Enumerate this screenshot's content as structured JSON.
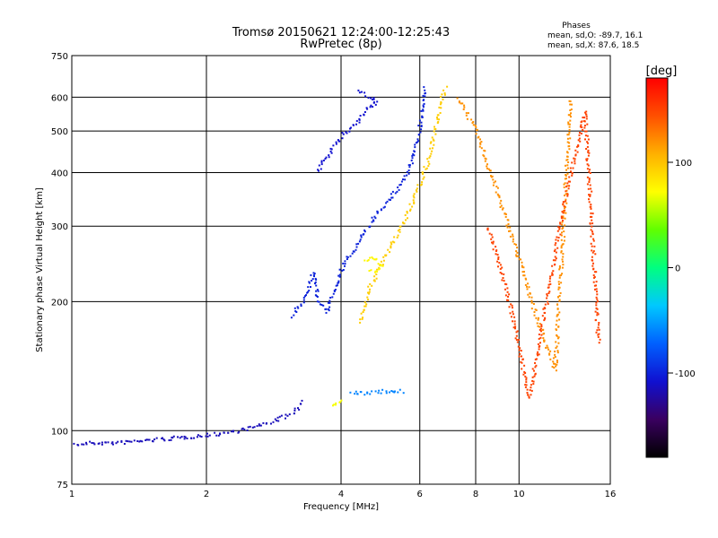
{
  "chart_data": {
    "type": "scatter",
    "title": "Tromsø 20150621 12:24:00-12:25:43",
    "subtitle": "RwPretec (8p)",
    "xlabel": "Frequency [MHz]",
    "ylabel": "Stationary phase Virtual Height [km]",
    "x_scale": "log",
    "y_scale": "log",
    "xlim": [
      1,
      16
    ],
    "ylim": [
      75,
      750
    ],
    "x_ticks": [
      1,
      2,
      4,
      6,
      8,
      10,
      16
    ],
    "y_ticks": [
      75,
      100,
      200,
      300,
      400,
      500,
      600,
      750
    ],
    "grid": true,
    "stats": {
      "heading": "Phases",
      "line_o": "mean, sd,O: -89.7, 16.1",
      "line_x": "mean, sd,X: 87.6, 18.5"
    },
    "colorbar": {
      "label": "[deg]",
      "min": -180,
      "max": 180,
      "ticks": [
        -100,
        0,
        100
      ],
      "colors": [
        "#000000",
        "#3a0060",
        "#1010d0",
        "#0060ff",
        "#00c8ff",
        "#00ff80",
        "#60ff00",
        "#ffff00",
        "#ffb000",
        "#ff5000",
        "#ff0000"
      ]
    },
    "traces": [
      {
        "name": "",
        "phase": -115,
        "points": [
          [
            1.0,
            93
          ],
          [
            1.1,
            94
          ],
          [
            1.25,
            94
          ],
          [
            1.4,
            95
          ],
          [
            1.6,
            96
          ],
          [
            1.8,
            97
          ],
          [
            2.0,
            98
          ],
          [
            2.3,
            100
          ],
          [
            2.6,
            103
          ],
          [
            2.9,
            107
          ],
          [
            3.1,
            110
          ],
          [
            3.3,
            118
          ]
        ]
      },
      {
        "name": "",
        "phase": -100,
        "points": [
          [
            3.1,
            185
          ],
          [
            3.3,
            205
          ],
          [
            3.45,
            235
          ],
          [
            3.55,
            200
          ],
          [
            3.7,
            190
          ],
          [
            3.85,
            215
          ],
          [
            4.0,
            240
          ],
          [
            4.3,
            270
          ],
          [
            4.6,
            300
          ],
          [
            4.8,
            325
          ],
          [
            5.0,
            340
          ],
          [
            5.3,
            365
          ],
          [
            5.6,
            400
          ],
          [
            5.8,
            440
          ],
          [
            5.95,
            500
          ],
          [
            6.05,
            560
          ],
          [
            6.1,
            620
          ],
          [
            6.15,
            640
          ]
        ]
      },
      {
        "name": "",
        "phase": -108,
        "points": [
          [
            3.55,
            405
          ],
          [
            3.6,
            420
          ],
          [
            3.65,
            430
          ],
          [
            3.9,
            470
          ],
          [
            4.0,
            490
          ],
          [
            4.2,
            510
          ],
          [
            4.4,
            540
          ],
          [
            4.6,
            570
          ],
          [
            4.8,
            585
          ],
          [
            4.35,
            625
          ]
        ]
      },
      {
        "name": "",
        "phase": 95,
        "points": [
          [
            4.4,
            180
          ],
          [
            4.6,
            215
          ],
          [
            4.85,
            240
          ],
          [
            5.1,
            265
          ],
          [
            5.4,
            295
          ],
          [
            5.7,
            335
          ],
          [
            6.0,
            380
          ],
          [
            6.3,
            440
          ],
          [
            6.5,
            520
          ],
          [
            6.7,
            600
          ],
          [
            6.85,
            640
          ]
        ]
      },
      {
        "name": "",
        "phase": 75,
        "points": [
          [
            4.5,
            250
          ],
          [
            4.7,
            255
          ],
          [
            4.9,
            245
          ],
          [
            4.75,
            235
          ],
          [
            4.6,
            240
          ]
        ]
      },
      {
        "name": "",
        "phase": -60,
        "points": [
          [
            4.2,
            123
          ],
          [
            4.5,
            123
          ],
          [
            4.9,
            124
          ],
          [
            5.2,
            124
          ],
          [
            5.5,
            124
          ]
        ]
      },
      {
        "name": "",
        "phase": 70,
        "points": [
          [
            3.8,
            115
          ],
          [
            3.95,
            118
          ],
          [
            4.0,
            120
          ]
        ]
      },
      {
        "name": "",
        "phase": 120,
        "points": [
          [
            7.3,
            600
          ],
          [
            8.0,
            500
          ],
          [
            9.0,
            350
          ],
          [
            10.0,
            250
          ],
          [
            11.0,
            180
          ],
          [
            12.0,
            140
          ],
          [
            13.0,
            600
          ]
        ]
      },
      {
        "name": "",
        "phase": 150,
        "points": [
          [
            8.5,
            300
          ],
          [
            9.5,
            200
          ],
          [
            10.5,
            120
          ],
          [
            12.5,
            330
          ],
          [
            14.0,
            560
          ],
          [
            15.0,
            160
          ]
        ]
      }
    ]
  }
}
